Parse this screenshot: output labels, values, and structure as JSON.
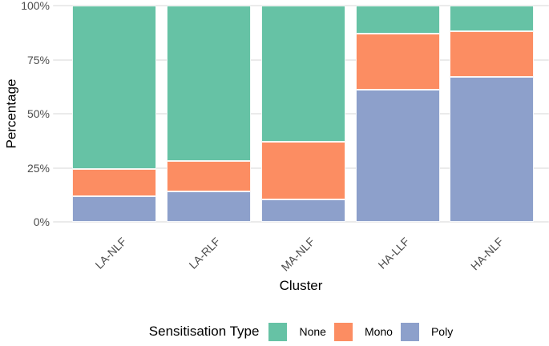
{
  "chart_data": {
    "type": "bar",
    "stacked": true,
    "percent_scale": true,
    "title": "",
    "xlabel": "Cluster",
    "ylabel": "Percentage",
    "ylim": [
      0,
      100
    ],
    "ytick_values": [
      0,
      25,
      50,
      75,
      100
    ],
    "ytick_labels": [
      "0%",
      "25%",
      "50%",
      "75%",
      "100%"
    ],
    "grid": "major-horizontal",
    "categories": [
      "LA-NLF",
      "LA-RLF",
      "MA-NLF",
      "HA-LLF",
      "HA-NLF"
    ],
    "series": [
      {
        "name": "None",
        "color": "#66C2A5",
        "values": [
          75.5,
          72.0,
          63.0,
          13.0,
          12.0
        ]
      },
      {
        "name": "Mono",
        "color": "#FC8D62",
        "values": [
          12.5,
          14.0,
          26.5,
          26.0,
          21.0
        ]
      },
      {
        "name": "Poly",
        "color": "#8DA0CB",
        "values": [
          12.0,
          14.0,
          10.5,
          61.0,
          67.0
        ]
      }
    ],
    "legend_title": "Sensitisation Type",
    "legend_position": "bottom",
    "colors": {
      "gridline": "#ebebeb",
      "tick_text": "#4d4d4d",
      "axis_title_text": "#000000",
      "background": "#ffffff"
    }
  }
}
